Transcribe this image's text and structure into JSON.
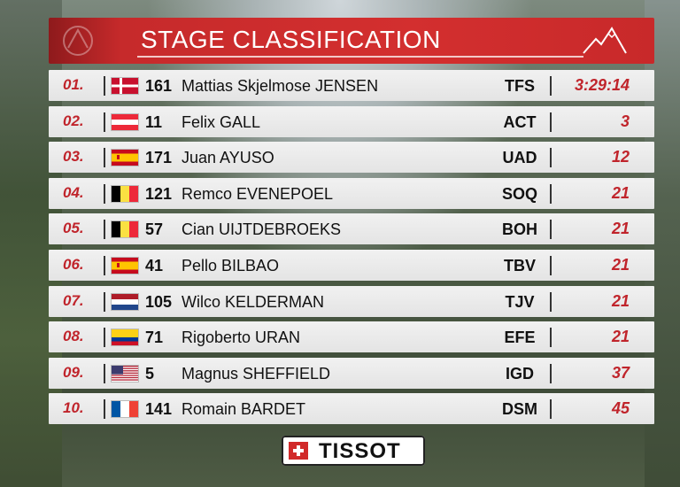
{
  "header": {
    "title": "STAGE CLASSIFICATION"
  },
  "colors": {
    "accent": "#d32f2f",
    "position": "#c0242b",
    "row_bg": "#eeeeee"
  },
  "riders": [
    {
      "position": "01.",
      "flag": "DEN",
      "number": "161",
      "name": "Mattias Skjelmose JENSEN",
      "team": "TFS",
      "time": "3:29:14"
    },
    {
      "position": "02.",
      "flag": "AUT",
      "number": "11",
      "name": "Felix GALL",
      "team": "ACT",
      "time": "3"
    },
    {
      "position": "03.",
      "flag": "ESP",
      "number": "171",
      "name": "Juan AYUSO",
      "team": "UAD",
      "time": "12"
    },
    {
      "position": "04.",
      "flag": "BEL",
      "number": "121",
      "name": "Remco EVENEPOEL",
      "team": "SOQ",
      "time": "21"
    },
    {
      "position": "05.",
      "flag": "BEL",
      "number": "57",
      "name": "Cian UIJTDEBROEKS",
      "team": "BOH",
      "time": "21"
    },
    {
      "position": "06.",
      "flag": "ESP",
      "number": "41",
      "name": "Pello BILBAO",
      "team": "TBV",
      "time": "21"
    },
    {
      "position": "07.",
      "flag": "NED",
      "number": "105",
      "name": "Wilco KELDERMAN",
      "team": "TJV",
      "time": "21"
    },
    {
      "position": "08.",
      "flag": "COL",
      "number": "71",
      "name": "Rigoberto URAN",
      "team": "EFE",
      "time": "21"
    },
    {
      "position": "09.",
      "flag": "USA",
      "number": "5",
      "name": "Magnus SHEFFIELD",
      "team": "IGD",
      "time": "37"
    },
    {
      "position": "10.",
      "flag": "FRA",
      "number": "141",
      "name": "Romain BARDET",
      "team": "DSM",
      "time": "45"
    }
  ],
  "sponsor": {
    "logo_text": "TISSOT"
  },
  "icons": {
    "header_right": "mountain-icon",
    "sponsor_mark": "swiss-cross-icon"
  }
}
